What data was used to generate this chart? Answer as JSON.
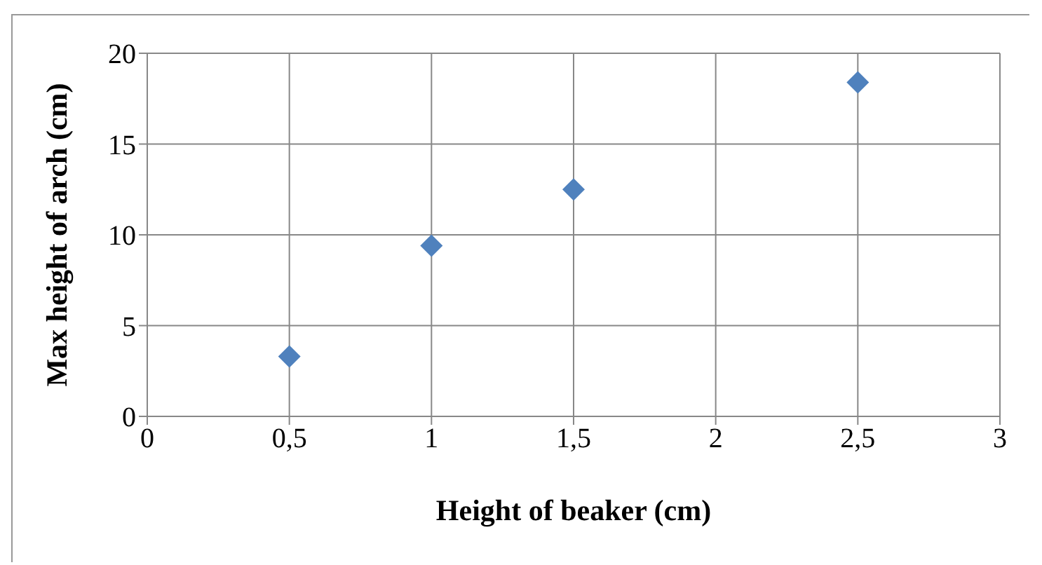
{
  "chart_data": {
    "type": "scatter",
    "xlabel": "Height of beaker (cm)",
    "ylabel": "Max height of arch (cm)",
    "x": [
      0.5,
      1,
      1.5,
      2.5
    ],
    "series": [
      {
        "color": "#4f81bd",
        "values": [
          3.3,
          9.4,
          12.5,
          18.4
        ]
      }
    ],
    "xlim": [
      0,
      3
    ],
    "xticks": [
      0,
      {
        "value": 0.5,
        "label": "0,5"
      },
      1,
      {
        "value": 1.5,
        "label": "1,5"
      },
      2,
      {
        "value": 2.5,
        "label": "2,5"
      },
      3
    ],
    "ylim": [
      0,
      20
    ],
    "yticks": [
      0,
      5,
      10,
      15,
      20
    ],
    "grid": true,
    "marker": "diamond",
    "legend": false
  }
}
